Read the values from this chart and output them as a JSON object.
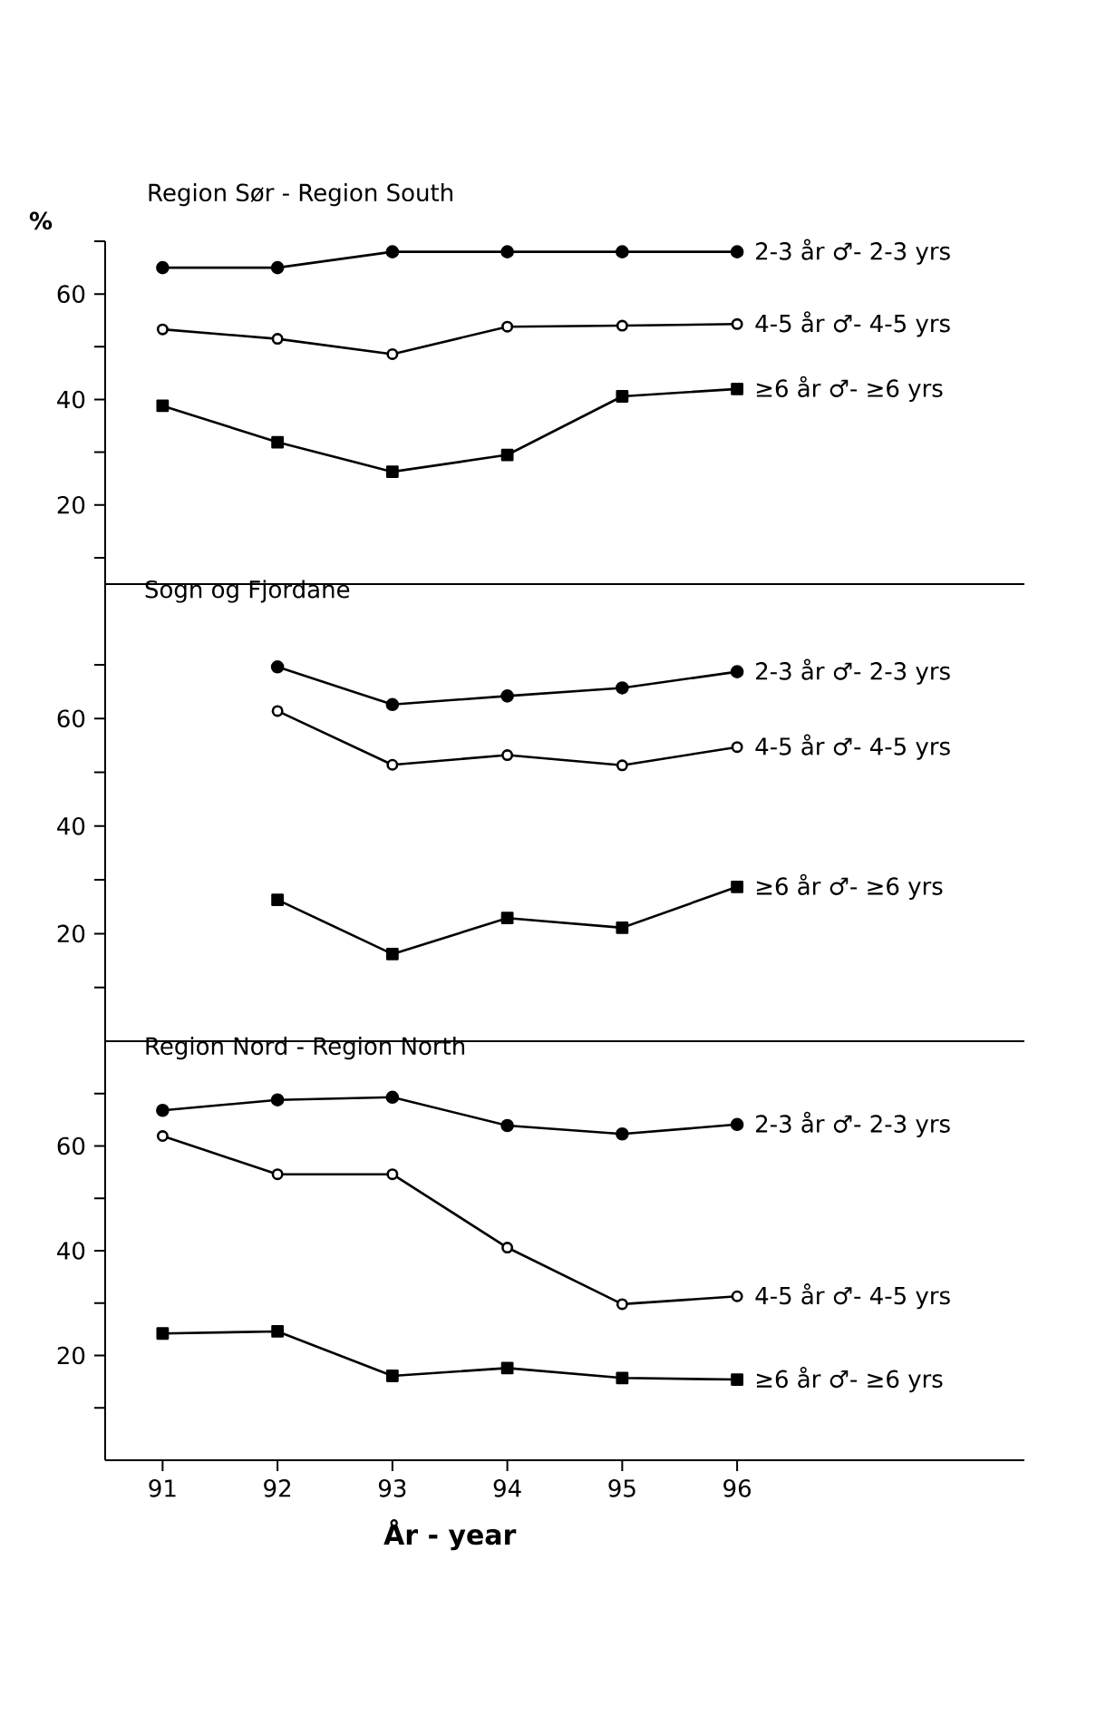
{
  "chart_data": [
    {
      "type": "line",
      "title": "Region Sør - Region South",
      "ylabel": "%",
      "x": [
        91,
        92,
        93,
        94,
        95,
        96
      ],
      "xlim": [
        90.5,
        98.5
      ],
      "ylim": [
        5,
        70
      ],
      "yticks": [
        {
          "value": 10,
          "label": null
        },
        20,
        {
          "value": 30,
          "label": null
        },
        40,
        {
          "value": 50,
          "label": null
        },
        60,
        {
          "value": 70,
          "label": null
        }
      ],
      "tick_labels": "y",
      "series": [
        {
          "name": "2-3 år ♂- 2-3 yrs",
          "color": "#000000",
          "marker": "circle",
          "values": [
            65,
            65,
            68,
            68,
            68,
            68
          ]
        },
        {
          "name": "4-5 år ♂- 4-5 yrs",
          "color": "#000000",
          "marker": "open circle",
          "values": [
            53.3,
            51.5,
            48.6,
            53.8,
            54,
            54.3
          ]
        },
        {
          "name": "≥6 år ♂- ≥6 yrs",
          "color": "#000000",
          "marker": "square",
          "values": [
            38.8,
            31.9,
            26.3,
            29.5,
            40.6,
            42
          ]
        }
      ]
    },
    {
      "type": "line",
      "title": "Sogn og Fjordane",
      "x": [
        92,
        93,
        94,
        95,
        96
      ],
      "xlim": [
        90.5,
        98.5
      ],
      "ylim": [
        0,
        85
      ],
      "yticks": [
        {
          "value": 10,
          "label": null
        },
        20,
        {
          "value": 30,
          "label": null
        },
        40,
        {
          "value": 50,
          "label": null
        },
        60,
        {
          "value": 70,
          "label": null
        }
      ],
      "tick_labels": "y",
      "series": [
        {
          "name": "2-3 år ♂- 2-3 yrs",
          "color": "#000000",
          "marker": "circle",
          "values": [
            69.6,
            62.6,
            64.2,
            65.7,
            68.7
          ]
        },
        {
          "name": "4-5 år ♂- 4-5 yrs",
          "color": "#000000",
          "marker": "open circle",
          "values": [
            61.4,
            51.4,
            53.2,
            51.3,
            54.7
          ]
        },
        {
          "name": "≥6 år ♂- ≥6 yrs",
          "color": "#000000",
          "marker": "square",
          "values": [
            26.3,
            16.2,
            22.9,
            21.1,
            28.7
          ]
        }
      ]
    },
    {
      "type": "line",
      "title": "Region Nord - Region North",
      "xlabel": "År - year",
      "x": [
        91,
        92,
        93,
        94,
        95,
        96
      ],
      "xlim": [
        90.5,
        98.5
      ],
      "ylim": [
        0,
        80
      ],
      "xticks": [
        91,
        92,
        93,
        94,
        95,
        96
      ],
      "yticks": [
        {
          "value": 10,
          "label": null
        },
        20,
        {
          "value": 30,
          "label": null
        },
        40,
        {
          "value": 50,
          "label": null
        },
        60,
        {
          "value": 70,
          "label": null
        }
      ],
      "series": [
        {
          "name": "2-3 år ♂- 2-3 yrs",
          "color": "#000000",
          "marker": "circle",
          "values": [
            66.8,
            68.8,
            69.3,
            63.9,
            62.3,
            64.1
          ]
        },
        {
          "name": "4-5 år ♂- 4-5 yrs",
          "color": "#000000",
          "marker": "open circle",
          "values": [
            61.9,
            54.6,
            54.6,
            40.6,
            29.8,
            31.3
          ]
        },
        {
          "name": "≥6 år ♂- ≥6 yrs",
          "color": "#000000",
          "marker": "square",
          "values": [
            24.2,
            24.6,
            16.1,
            17.6,
            15.7,
            15.4
          ]
        }
      ]
    }
  ]
}
